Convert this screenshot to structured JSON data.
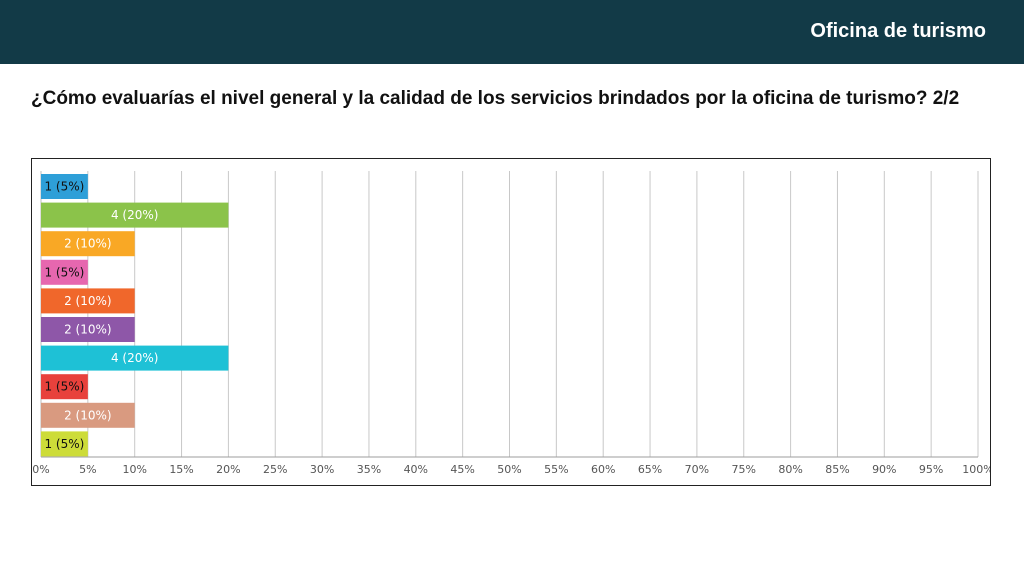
{
  "header": {
    "title": "Oficina de turismo"
  },
  "question": "¿Cómo evaluarías el nivel general y la calidad de los servicios brindados por la oficina de turismo? 2/2",
  "chart_data": {
    "type": "bar",
    "orientation": "horizontal",
    "title": "",
    "xlabel": "",
    "ylabel": "",
    "xlim": [
      0,
      100
    ],
    "x_ticks": [
      "0%",
      "5%",
      "10%",
      "15%",
      "20%",
      "25%",
      "30%",
      "35%",
      "40%",
      "45%",
      "50%",
      "55%",
      "60%",
      "65%",
      "70%",
      "75%",
      "80%",
      "85%",
      "90%",
      "95%",
      "100%"
    ],
    "grid": true,
    "bars": [
      {
        "count": 1,
        "percent": 5,
        "label": "1 (5%)",
        "color": "#2e9fd8",
        "label_color": "#111111"
      },
      {
        "count": 4,
        "percent": 20,
        "label": "4 (20%)",
        "color": "#8bc34a",
        "label_color": "#ffffff"
      },
      {
        "count": 2,
        "percent": 10,
        "label": "2 (10%)",
        "color": "#f9a825",
        "label_color": "#ffffff"
      },
      {
        "count": 1,
        "percent": 5,
        "label": "1 (5%)",
        "color": "#e667af",
        "label_color": "#111111"
      },
      {
        "count": 2,
        "percent": 10,
        "label": "2 (10%)",
        "color": "#f0672b",
        "label_color": "#ffffff"
      },
      {
        "count": 2,
        "percent": 10,
        "label": "2 (10%)",
        "color": "#8e57a8",
        "label_color": "#ffffff"
      },
      {
        "count": 4,
        "percent": 20,
        "label": "4 (20%)",
        "color": "#1ec1d6",
        "label_color": "#ffffff"
      },
      {
        "count": 1,
        "percent": 5,
        "label": "1 (5%)",
        "color": "#e8413c",
        "label_color": "#111111"
      },
      {
        "count": 2,
        "percent": 10,
        "label": "2 (10%)",
        "color": "#d99a80",
        "label_color": "#ffffff"
      },
      {
        "count": 1,
        "percent": 5,
        "label": "1 (5%)",
        "color": "#cddc39",
        "label_color": "#111111"
      }
    ]
  }
}
